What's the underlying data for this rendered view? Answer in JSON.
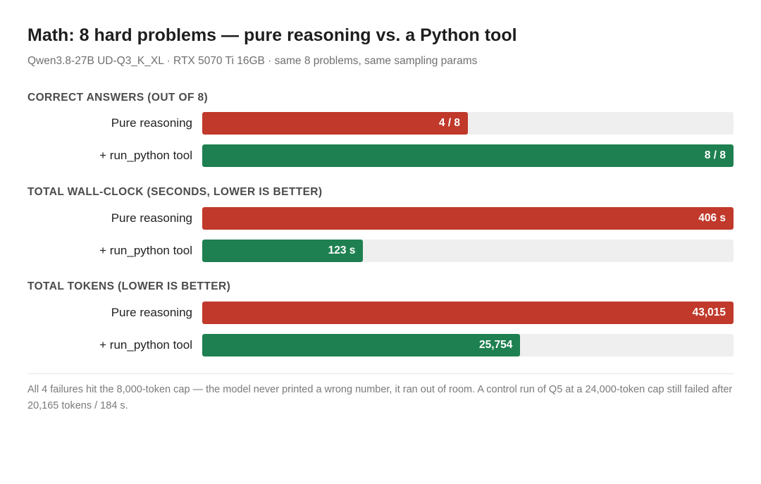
{
  "title": "Math: 8 hard problems — pure reasoning vs. a Python tool",
  "subtitle": "Qwen3.8-27B UD-Q3_K_XL · RTX 5070 Ti 16GB · same 8 problems, same sampling params",
  "colors": {
    "pure": "#c0392b",
    "tool": "#1e8050",
    "track": "#efefef"
  },
  "chart_data": [
    {
      "type": "bar",
      "orientation": "horizontal",
      "title": "CORRECT ANSWERS (OUT OF 8)",
      "xlim": [
        0,
        8
      ],
      "bars": [
        {
          "category": "Pure reasoning",
          "value": 4,
          "label": "4 / 8"
        },
        {
          "category": "+ run_python tool",
          "value": 8,
          "label": "8 / 8"
        }
      ]
    },
    {
      "type": "bar",
      "orientation": "horizontal",
      "title": "TOTAL WALL-CLOCK (SECONDS, LOWER IS BETTER)",
      "xlim": [
        0,
        406
      ],
      "bars": [
        {
          "category": "Pure reasoning",
          "value": 406,
          "label": "406 s"
        },
        {
          "category": "+ run_python tool",
          "value": 123,
          "label": "123 s"
        }
      ]
    },
    {
      "type": "bar",
      "orientation": "horizontal",
      "title": "TOTAL TOKENS (LOWER IS BETTER)",
      "xlim": [
        0,
        43015
      ],
      "bars": [
        {
          "category": "Pure reasoning",
          "value": 43015,
          "label": "43,015"
        },
        {
          "category": "+ run_python tool",
          "value": 25754,
          "label": "25,754"
        }
      ]
    }
  ],
  "footnote": "All 4 failures hit the 8,000-token cap — the model never printed a wrong number, it ran out of room. A control run of Q5 at a 24,000-token cap still failed after 20,165 tokens / 184 s."
}
